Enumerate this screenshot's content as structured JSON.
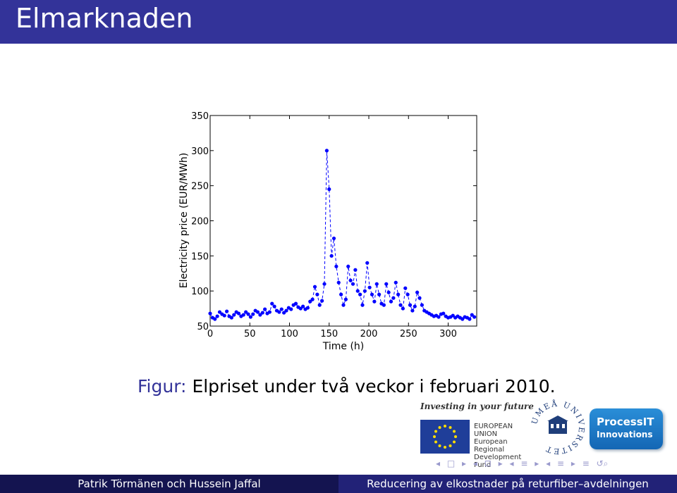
{
  "slide": {
    "title": "Elmarknaden",
    "caption_label": "Figur:",
    "caption_text": "Elpriset under två veckor i februari 2010.",
    "footer_left": "Patrik Törmänen och Hussein Jaffal",
    "footer_right": "Reducering av elkostnader på returfiber–avdelningen",
    "colors": {
      "title_bar": "#333399",
      "footer_left": "#141450",
      "footer_right": "#222277",
      "series": "#0000ff"
    }
  },
  "logos": {
    "eu_slogan": "Investing in your future",
    "eu_line1": "EUROPEAN",
    "eu_line2": "UNION",
    "eu_line3": "European Regional",
    "eu_line4": "Development Fund",
    "umea_text": "UMEÅ UNIVERSITET",
    "processit_name": "ProcessIT",
    "processit_sub": "Innovations"
  },
  "nav": {
    "icons": [
      "nav-left-arrow-icon",
      "nav-frame-icon",
      "nav-right-arrow-icon",
      "nav-section-icon",
      "nav-subsection-icon",
      "nav-align-icon",
      "nav-search-icon"
    ]
  },
  "chart_data": {
    "type": "line",
    "title": "",
    "xlabel": "Time (h)",
    "ylabel": "Electricity price (EUR/MWh)",
    "xlim": [
      0,
      336
    ],
    "ylim": [
      50,
      350
    ],
    "xticks": [
      0,
      50,
      100,
      150,
      200,
      250,
      300
    ],
    "yticks": [
      50,
      100,
      150,
      200,
      250,
      300,
      350
    ],
    "line_style": "dashed with circle markers",
    "x": [
      0,
      3,
      6,
      9,
      12,
      15,
      18,
      21,
      24,
      27,
      30,
      33,
      36,
      39,
      42,
      45,
      48,
      51,
      54,
      57,
      60,
      63,
      66,
      69,
      72,
      75,
      78,
      81,
      84,
      87,
      90,
      93,
      96,
      99,
      102,
      105,
      108,
      111,
      114,
      117,
      120,
      123,
      126,
      129,
      132,
      135,
      138,
      141,
      144,
      147,
      150,
      153,
      156,
      159,
      162,
      165,
      168,
      171,
      174,
      177,
      180,
      183,
      186,
      189,
      192,
      195,
      198,
      201,
      204,
      207,
      210,
      213,
      216,
      219,
      222,
      225,
      228,
      231,
      234,
      237,
      240,
      243,
      246,
      249,
      252,
      255,
      258,
      261,
      264,
      267,
      270,
      273,
      276,
      279,
      282,
      285,
      288,
      291,
      294,
      297,
      300,
      303,
      306,
      309,
      312,
      315,
      318,
      321,
      324,
      327,
      330,
      333
    ],
    "y": [
      68,
      62,
      60,
      64,
      70,
      67,
      65,
      71,
      64,
      62,
      66,
      70,
      68,
      64,
      66,
      70,
      67,
      63,
      67,
      72,
      70,
      66,
      69,
      74,
      68,
      70,
      82,
      78,
      72,
      70,
      74,
      69,
      72,
      76,
      74,
      80,
      82,
      77,
      75,
      78,
      74,
      76,
      85,
      88,
      106,
      95,
      80,
      86,
      110,
      300,
      245,
      150,
      175,
      135,
      112,
      95,
      80,
      88,
      135,
      115,
      110,
      130,
      100,
      95,
      80,
      100,
      140,
      105,
      95,
      85,
      110,
      95,
      82,
      80,
      110,
      98,
      85,
      90,
      112,
      95,
      80,
      75,
      104,
      95,
      80,
      72,
      78,
      98,
      90,
      80,
      72,
      70,
      68,
      66,
      64,
      65,
      63,
      67,
      68,
      64,
      62,
      63,
      65,
      62,
      64,
      62,
      60,
      63,
      62,
      60,
      66,
      63
    ]
  }
}
